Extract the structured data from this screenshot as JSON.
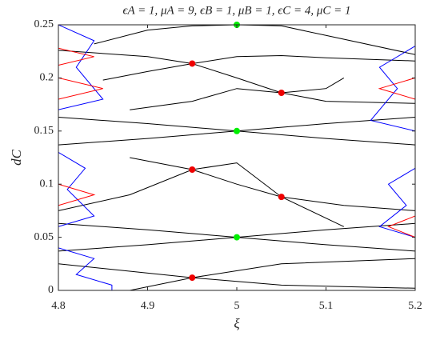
{
  "chart_data": {
    "type": "line",
    "title": "ϵA = 1, μA = 9, ϵB = 1, μB = 1, ϵC = 4, μC = 1",
    "xlabel": "ξ",
    "ylabel": "dC",
    "xlim": [
      4.8,
      5.2
    ],
    "ylim": [
      0,
      0.25
    ],
    "xticks": [
      4.8,
      4.9,
      5,
      5.1,
      5.2
    ],
    "yticks": [
      0,
      0.05,
      0.1,
      0.15,
      0.2,
      0.25
    ],
    "series": [
      {
        "color": "#000000",
        "x": [
          4.84,
          4.9,
          4.95,
          5.0,
          5.05,
          5.1,
          5.2
        ],
        "y": [
          0.232,
          0.245,
          0.249,
          0.25,
          0.249,
          0.24,
          0.222
        ]
      },
      {
        "color": "#000000",
        "x": [
          4.85,
          4.9,
          4.95,
          5.0,
          5.05,
          5.1,
          5.2
        ],
        "y": [
          0.198,
          0.206,
          0.2135,
          0.22,
          0.221,
          0.219,
          0.216
        ]
      },
      {
        "color": "#000000",
        "x": [
          4.8,
          4.9,
          4.95,
          5.0,
          5.05,
          5.1,
          5.2
        ],
        "y": [
          0.226,
          0.22,
          0.2135,
          0.2,
          0.186,
          0.178,
          0.176
        ]
      },
      {
        "color": "#000000",
        "x": [
          4.88,
          4.95,
          5.0,
          5.05,
          5.1,
          5.12
        ],
        "y": [
          0.17,
          0.178,
          0.19,
          0.186,
          0.19,
          0.2
        ]
      },
      {
        "color": "#000000",
        "x": [
          4.8,
          4.9,
          5.0,
          5.1,
          5.2
        ],
        "y": [
          0.163,
          0.157,
          0.15,
          0.143,
          0.137
        ]
      },
      {
        "color": "#000000",
        "x": [
          4.8,
          4.9,
          5.0,
          5.1,
          5.2
        ],
        "y": [
          0.137,
          0.143,
          0.15,
          0.157,
          0.163
        ]
      },
      {
        "color": "#000000",
        "x": [
          4.88,
          4.95,
          5.0,
          5.05,
          5.12,
          5.2
        ],
        "y": [
          0.125,
          0.1137,
          0.1,
          0.088,
          0.08,
          0.075
        ]
      },
      {
        "color": "#000000",
        "x": [
          4.8,
          4.88,
          4.95,
          5.0,
          5.05,
          5.12
        ],
        "y": [
          0.075,
          0.09,
          0.1137,
          0.12,
          0.088,
          0.06
        ]
      },
      {
        "color": "#000000",
        "x": [
          4.8,
          4.9,
          5.0,
          5.1,
          5.2
        ],
        "y": [
          0.063,
          0.057,
          0.05,
          0.043,
          0.037
        ]
      },
      {
        "color": "#000000",
        "x": [
          4.8,
          4.9,
          5.0,
          5.1,
          5.2
        ],
        "y": [
          0.037,
          0.043,
          0.05,
          0.057,
          0.063
        ]
      },
      {
        "color": "#000000",
        "x": [
          4.88,
          4.95,
          5.05,
          5.2
        ],
        "y": [
          0.0,
          0.012,
          0.025,
          0.03
        ]
      },
      {
        "color": "#000000",
        "x": [
          4.8,
          4.95,
          5.05,
          5.2
        ],
        "y": [
          0.025,
          0.012,
          0.005,
          0.002
        ]
      },
      {
        "color": "#0000ff",
        "x": [
          4.8,
          4.84,
          4.82,
          4.85,
          4.8
        ],
        "y": [
          0.25,
          0.235,
          0.21,
          0.18,
          0.17
        ]
      },
      {
        "color": "#0000ff",
        "x": [
          4.8,
          4.83,
          4.81,
          4.84,
          4.8
        ],
        "y": [
          0.13,
          0.115,
          0.095,
          0.07,
          0.06
        ]
      },
      {
        "color": "#0000ff",
        "x": [
          4.8,
          4.84,
          4.82,
          4.86,
          4.86
        ],
        "y": [
          0.04,
          0.03,
          0.015,
          0.005,
          0.0
        ]
      },
      {
        "color": "#0000ff",
        "x": [
          5.2,
          5.16,
          5.18,
          5.15,
          5.2
        ],
        "y": [
          0.23,
          0.21,
          0.19,
          0.16,
          0.15
        ]
      },
      {
        "color": "#0000ff",
        "x": [
          5.2,
          5.17,
          5.19,
          5.16,
          5.2
        ],
        "y": [
          0.115,
          0.1,
          0.08,
          0.06,
          0.05
        ]
      },
      {
        "color": "#ff0000",
        "x": [
          4.8,
          4.84,
          4.8
        ],
        "y": [
          0.228,
          0.22,
          0.212
        ]
      },
      {
        "color": "#ff0000",
        "x": [
          4.8,
          4.85,
          4.8
        ],
        "y": [
          0.2,
          0.19,
          0.18
        ]
      },
      {
        "color": "#ff0000",
        "x": [
          4.8,
          4.84,
          4.8
        ],
        "y": [
          0.1,
          0.09,
          0.08
        ]
      },
      {
        "color": "#ff0000",
        "x": [
          5.2,
          5.16,
          5.2
        ],
        "y": [
          0.2,
          0.19,
          0.18
        ]
      },
      {
        "color": "#ff0000",
        "x": [
          5.2,
          5.17,
          5.2
        ],
        "y": [
          0.07,
          0.06,
          0.05
        ]
      }
    ],
    "markers": [
      {
        "color": "#00ee00",
        "x": [
          5.0,
          5.0,
          5.0
        ],
        "y": [
          0.25,
          0.15,
          0.05
        ]
      },
      {
        "color": "#ee0000",
        "x": [
          4.95,
          5.05,
          4.95,
          5.05,
          4.95
        ],
        "y": [
          0.2135,
          0.186,
          0.1137,
          0.088,
          0.012
        ]
      }
    ]
  }
}
